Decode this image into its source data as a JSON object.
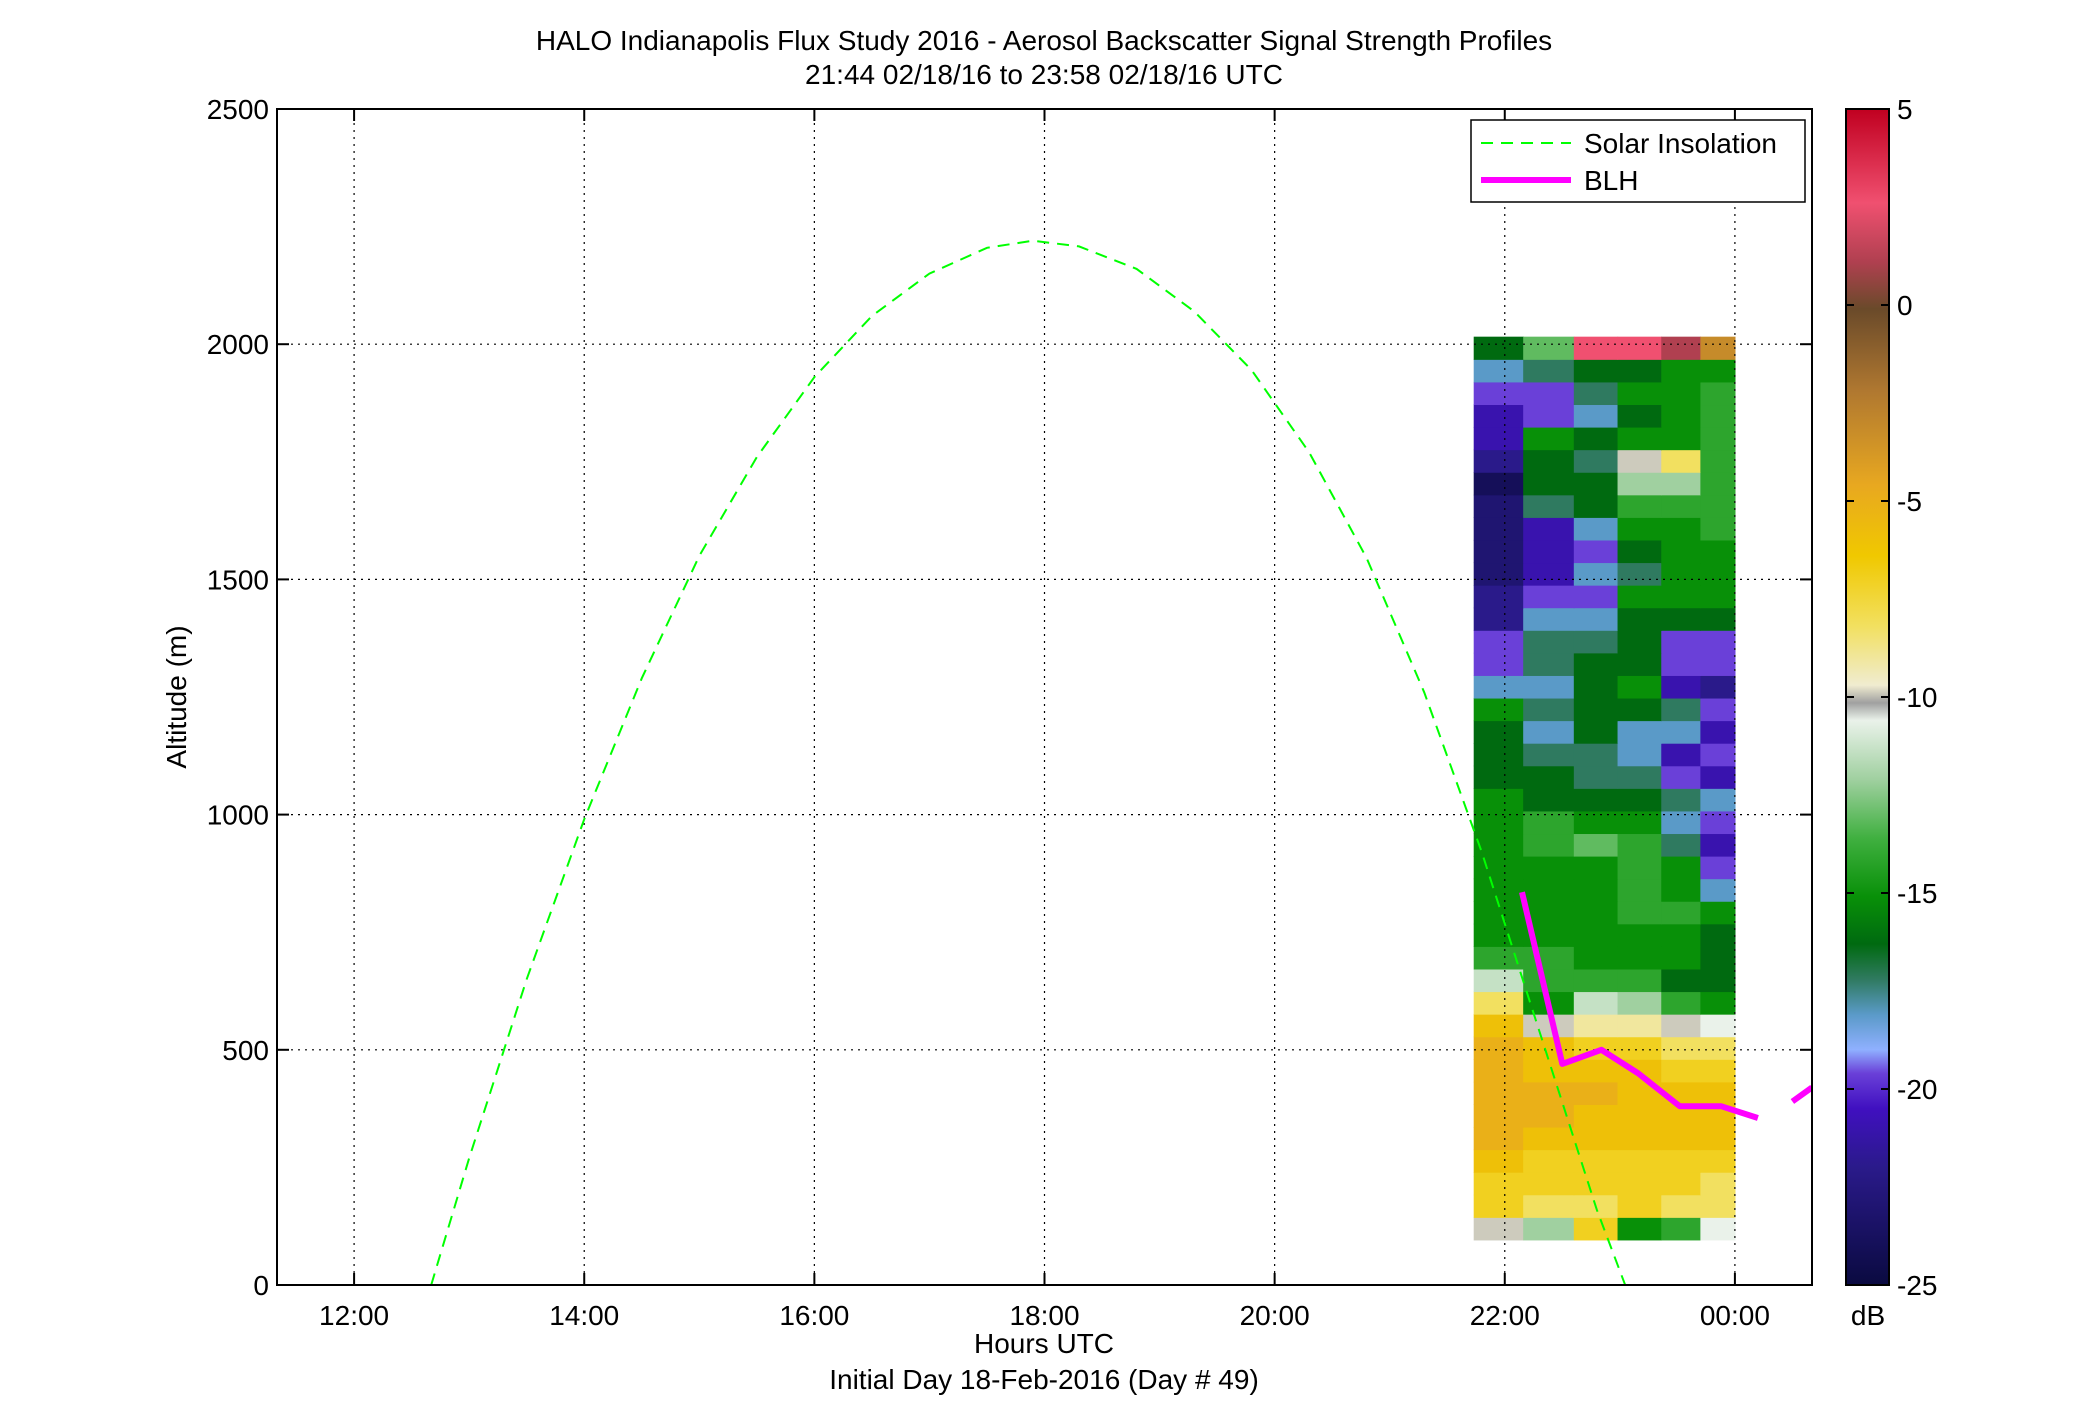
{
  "chart_data": {
    "type": "heatmap",
    "title": "HALO Indianapolis Flux Study 2016 - Aerosol Backscatter Signal Strength Profiles",
    "subtitle": "21:44 02/18/16 to 23:58 02/18/16  UTC",
    "xlabel": "Hours UTC",
    "xlabel2": "Initial Day 18-Feb-2016 (Day # 49)",
    "ylabel": "Altitude (m)",
    "x_unit": "hours UTC (from 00:00 02/18/16)",
    "xlim": [
      11.33,
      24.67
    ],
    "ylim": [
      0,
      2500
    ],
    "x_ticks": [
      12,
      14,
      16,
      18,
      20,
      22,
      24
    ],
    "x_tick_labels": [
      "12:00",
      "14:00",
      "16:00",
      "18:00",
      "20:00",
      "22:00",
      "00:00"
    ],
    "y_ticks": [
      0,
      500,
      1000,
      1500,
      2000,
      2500
    ],
    "y_tick_labels": [
      "0",
      "500",
      "1000",
      "1500",
      "2000",
      "2500"
    ],
    "grid": true,
    "legend_position": "top-right",
    "colorbar": {
      "label": "dB",
      "range": [
        -25,
        5
      ],
      "ticks": [
        5,
        0,
        -5,
        -10,
        -15,
        -20,
        -25
      ],
      "tick_labels": [
        "5",
        "0",
        "-5",
        "-10",
        "-15",
        "-20",
        "-25"
      ]
    },
    "heatmap": {
      "x_edges": [
        21.73,
        22.16,
        22.6,
        22.98,
        23.36,
        23.7,
        24.0
      ],
      "y_step": 48,
      "y_start": 96,
      "values_db": [
        [
          -10,
          -13,
          -7,
          -16,
          -15,
          -11
        ],
        [
          -7,
          -8,
          -8,
          -7,
          -8,
          -8
        ],
        [
          -7,
          -7,
          -7,
          -7,
          -7,
          -8
        ],
        [
          -6,
          -7,
          -7,
          -7,
          -7,
          -7
        ],
        [
          -5,
          -6,
          -6,
          -6,
          -6,
          -6
        ],
        [
          -5,
          -5,
          -6,
          -6,
          -6,
          -6
        ],
        [
          -5,
          -5,
          -5,
          -6,
          -6,
          -6
        ],
        [
          -5,
          -6,
          -6,
          -6,
          -7,
          -7
        ],
        [
          -5,
          -6,
          -7,
          -7,
          -8,
          -8
        ],
        [
          -6,
          -10,
          -9,
          -9,
          -10,
          -11
        ],
        [
          -8,
          -16,
          -12,
          -13,
          -15,
          -16
        ],
        [
          -12,
          -15,
          -15,
          -15,
          -17,
          -17
        ],
        [
          -15,
          -15,
          -16,
          -16,
          -16,
          -17
        ],
        [
          -16,
          -16,
          -16,
          -16,
          -16,
          -17
        ],
        [
          -16,
          -16,
          -16,
          -15,
          -15,
          -16
        ],
        [
          -16,
          -16,
          -16,
          -15,
          -16,
          -19
        ],
        [
          -16,
          -16,
          -16,
          -15,
          -16,
          -20
        ],
        [
          -16,
          -15,
          -14,
          -15,
          -18,
          -21
        ],
        [
          -16,
          -15,
          -16,
          -16,
          -19,
          -20
        ],
        [
          -16,
          -17,
          -17,
          -17,
          -18,
          -19
        ],
        [
          -17,
          -17,
          -18,
          -18,
          -20,
          -21
        ],
        [
          -17,
          -18,
          -18,
          -19,
          -21,
          -20
        ],
        [
          -17,
          -19,
          -17,
          -19,
          -19,
          -21
        ],
        [
          -16,
          -18,
          -17,
          -17,
          -18,
          -20
        ],
        [
          -19,
          -19,
          -17,
          -16,
          -21,
          -22
        ],
        [
          -20,
          -18,
          -17,
          -17,
          -20,
          -20
        ],
        [
          -20,
          -18,
          -18,
          -17,
          -20,
          -20
        ],
        [
          -22,
          -19,
          -19,
          -17,
          -17,
          -17
        ],
        [
          -22,
          -20,
          -20,
          -16,
          -16,
          -16
        ],
        [
          -23,
          -21,
          -19,
          -18,
          -16,
          -16
        ],
        [
          -23,
          -21,
          -20,
          -17,
          -16,
          -16
        ],
        [
          -23,
          -21,
          -19,
          -16,
          -16,
          -15
        ],
        [
          -23,
          -18,
          -17,
          -15,
          -15,
          -15
        ],
        [
          -24,
          -17,
          -17,
          -13,
          -13,
          -15
        ],
        [
          -22,
          -17,
          -18,
          -10,
          -8,
          -15
        ],
        [
          -21,
          -16,
          -17,
          -16,
          -16,
          -15
        ],
        [
          -21,
          -20,
          -19,
          -17,
          -16,
          -15
        ],
        [
          -20,
          -20,
          -18,
          -16,
          -16,
          -15
        ],
        [
          -19,
          -18,
          -17,
          -17,
          -16,
          -16
        ],
        [
          -17,
          -14,
          3,
          3,
          1,
          -3
        ]
      ]
    },
    "series": [
      {
        "name": "Solar Insolation",
        "color": "#00ff00",
        "style": "dashed",
        "x": [
          12.67,
          13.0,
          13.5,
          14.0,
          14.5,
          15.0,
          15.5,
          16.0,
          16.5,
          17.0,
          17.5,
          17.9,
          18.3,
          18.8,
          19.3,
          19.8,
          20.3,
          20.8,
          21.3,
          21.8,
          22.3,
          22.8,
          23.2
        ],
        "y": [
          0,
          270,
          650,
          990,
          1290,
          1550,
          1760,
          1930,
          2060,
          2150,
          2205,
          2220,
          2208,
          2160,
          2070,
          1945,
          1770,
          1545,
          1260,
          920,
          540,
          160,
          -100
        ]
      },
      {
        "name": "BLH",
        "color": "#ff00ff",
        "style": "solid",
        "segments": [
          {
            "x": [
              22.15,
              22.5,
              22.84,
              23.16,
              23.52,
              23.88,
              24.2
            ],
            "y": [
              835,
              470,
              500,
              450,
              380,
              380,
              355
            ]
          },
          {
            "x": [
              24.5,
              24.67
            ],
            "y": [
              390,
              420
            ]
          }
        ]
      }
    ]
  }
}
